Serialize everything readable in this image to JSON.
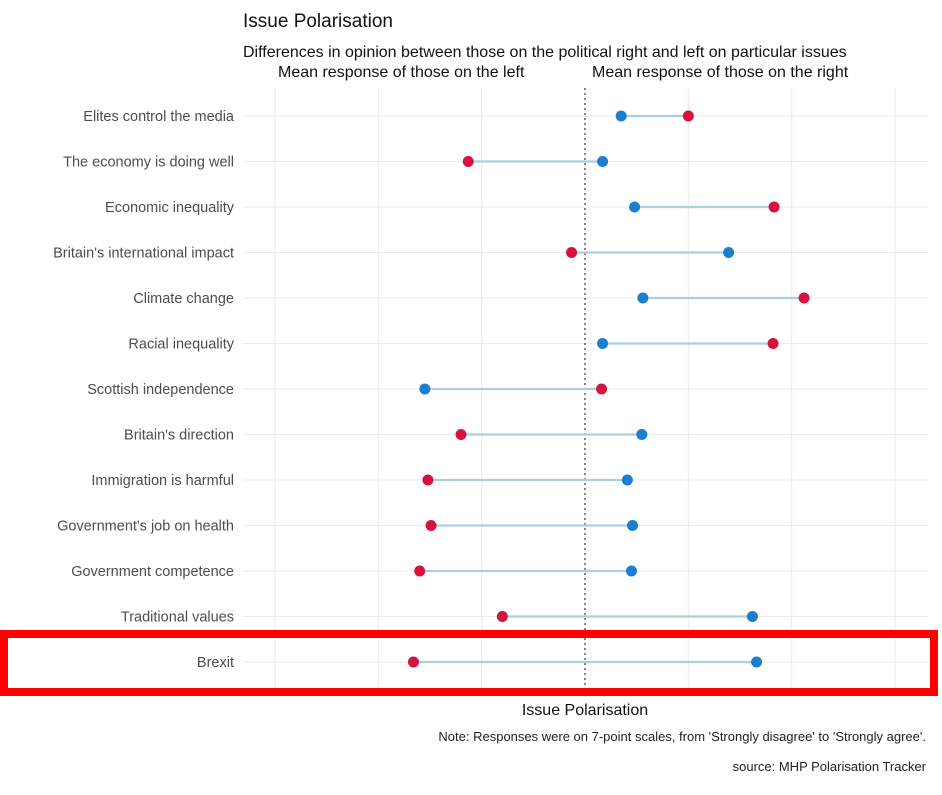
{
  "chart_data": {
    "type": "dumbbell",
    "title": "Issue Polarisation",
    "subtitle": "Differences in opinion between those on the political right and left on particular issues",
    "left_header": "Mean response of those on the left",
    "right_header": "Mean response of those on the right",
    "xlabel": "Issue Polarisation",
    "note": "Note: Responses were on 7-point scales, from 'Strongly disagree' to 'Strongly agree'.",
    "source": "source: MHP Polarisation Tracker",
    "xlim": [
      1,
      7
    ],
    "midline": 4,
    "grid": true,
    "categories": [
      "Elites control the media",
      "The economy is doing well",
      "Economic inequality",
      "Britain's international impact",
      "Climate change",
      "Racial inequality",
      "Scottish independence",
      "Britain's direction",
      "Immigration is harmful",
      "Government's job on health",
      "Government competence",
      "Traditional values",
      "Brexit"
    ],
    "series": [
      {
        "color": "#1a7fd0",
        "values": [
          4.35,
          4.17,
          4.48,
          5.39,
          4.56,
          4.17,
          2.45,
          4.55,
          4.41,
          4.46,
          4.45,
          5.62,
          5.66
        ]
      },
      {
        "color": "#d6123f",
        "values": [
          5.0,
          2.87,
          5.83,
          3.87,
          6.12,
          5.82,
          4.16,
          2.8,
          2.48,
          2.51,
          2.4,
          3.2,
          2.34
        ]
      }
    ],
    "segment_color": "#a9cfe2",
    "highlighted_category": "Brexit",
    "highlight_color": "#ff0000"
  }
}
